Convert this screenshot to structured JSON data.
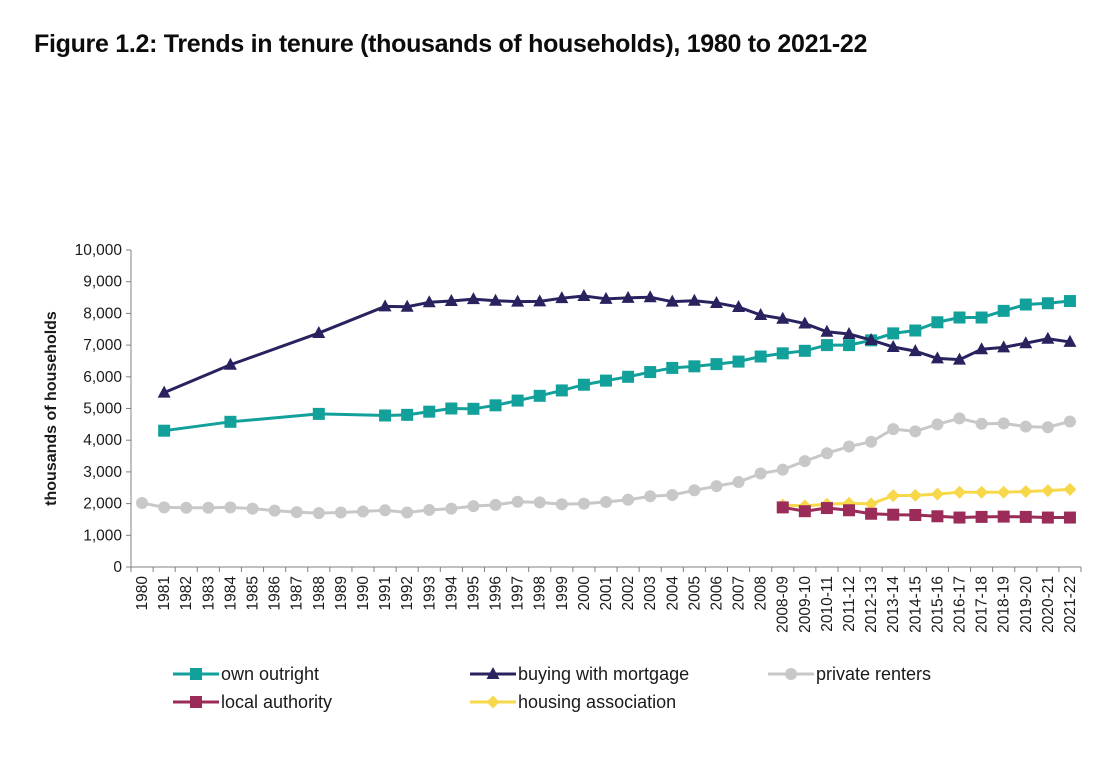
{
  "figure_title": "Figure 1.2: Trends in tenure (thousands of households), 1980 to 2021-22",
  "chart_data": {
    "type": "line",
    "title": "Figure 1.2: Trends in tenure (thousands of households), 1980 to 2021-22",
    "xlabel": "",
    "ylabel": "thousands of households",
    "ylim": [
      0,
      10000
    ],
    "yticks": [
      0,
      1000,
      2000,
      3000,
      4000,
      5000,
      6000,
      7000,
      8000,
      9000,
      10000
    ],
    "ytick_labels": [
      "0",
      "1,000",
      "2,000",
      "3,000",
      "4,000",
      "5,000",
      "6,000",
      "7,000",
      "8,000",
      "9,000",
      "10,000"
    ],
    "grid": false,
    "legend_position": "bottom",
    "categories": [
      "1980",
      "1981",
      "1982",
      "1983",
      "1984",
      "1985",
      "1986",
      "1987",
      "1988",
      "1989",
      "1990",
      "1991",
      "1992",
      "1993",
      "1994",
      "1995",
      "1996",
      "1997",
      "1998",
      "1999",
      "2000",
      "2001",
      "2002",
      "2003",
      "2004",
      "2005",
      "2006",
      "2007",
      "2008",
      "2008-09",
      "2009-10",
      "2010-11",
      "2011-12",
      "2012-13",
      "2013-14",
      "2014-15",
      "2015-16",
      "2016-17",
      "2017-18",
      "2018-19",
      "2019-20",
      "2020-21",
      "2021-22"
    ],
    "series": [
      {
        "name": "own outright",
        "color": "#12a19a",
        "marker": "square",
        "values": [
          null,
          4300,
          null,
          null,
          4580,
          null,
          null,
          null,
          4830,
          null,
          null,
          4780,
          4800,
          4900,
          5000,
          4990,
          5100,
          5250,
          5400,
          5570,
          5750,
          5880,
          6000,
          6150,
          6280,
          6330,
          6400,
          6480,
          6640,
          6740,
          6820,
          7000,
          7000,
          7150,
          7370,
          7460,
          7720,
          7870,
          7870,
          8080,
          8280,
          8320,
          8390
        ]
      },
      {
        "name": "buying with mortgage",
        "color": "#28235f",
        "marker": "triangle",
        "values": [
          null,
          5500,
          null,
          null,
          6380,
          null,
          null,
          null,
          7380,
          null,
          null,
          8220,
          8210,
          8350,
          8390,
          8450,
          8400,
          8370,
          8380,
          8480,
          8550,
          8460,
          8490,
          8510,
          8370,
          8400,
          8330,
          8200,
          7950,
          7830,
          7680,
          7420,
          7350,
          7160,
          6940,
          6810,
          6580,
          6540,
          6870,
          6930,
          7060,
          7200,
          7100
        ]
      },
      {
        "name": "private renters",
        "color": "#c8c8c8",
        "marker": "circle",
        "values": [
          2020,
          1880,
          1870,
          1870,
          1880,
          1840,
          1780,
          1730,
          1700,
          1720,
          1750,
          1790,
          1720,
          1800,
          1840,
          1920,
          1960,
          2060,
          2040,
          1980,
          2000,
          2050,
          2120,
          2230,
          2270,
          2420,
          2550,
          2680,
          2950,
          3070,
          3340,
          3590,
          3800,
          3950,
          4350,
          4280,
          4500,
          4690,
          4520,
          4530,
          4430,
          4410,
          4590
        ]
      },
      {
        "name": "local authority",
        "color": "#9b2c59",
        "marker": "square",
        "values": [
          null,
          null,
          null,
          null,
          null,
          null,
          null,
          null,
          null,
          null,
          null,
          null,
          null,
          null,
          null,
          null,
          null,
          null,
          null,
          null,
          null,
          null,
          null,
          null,
          null,
          null,
          null,
          null,
          null,
          1880,
          1760,
          1860,
          1790,
          1680,
          1650,
          1640,
          1600,
          1560,
          1580,
          1590,
          1580,
          1560,
          1560
        ]
      },
      {
        "name": "housing association",
        "color": "#f7d84b",
        "marker": "diamond",
        "values": [
          null,
          null,
          null,
          null,
          null,
          null,
          null,
          null,
          null,
          null,
          null,
          null,
          null,
          null,
          null,
          null,
          null,
          null,
          null,
          null,
          null,
          null,
          null,
          null,
          null,
          null,
          null,
          null,
          null,
          1950,
          1930,
          1980,
          2010,
          1990,
          2250,
          2260,
          2300,
          2360,
          2360,
          2360,
          2380,
          2410,
          2450
        ]
      }
    ]
  }
}
